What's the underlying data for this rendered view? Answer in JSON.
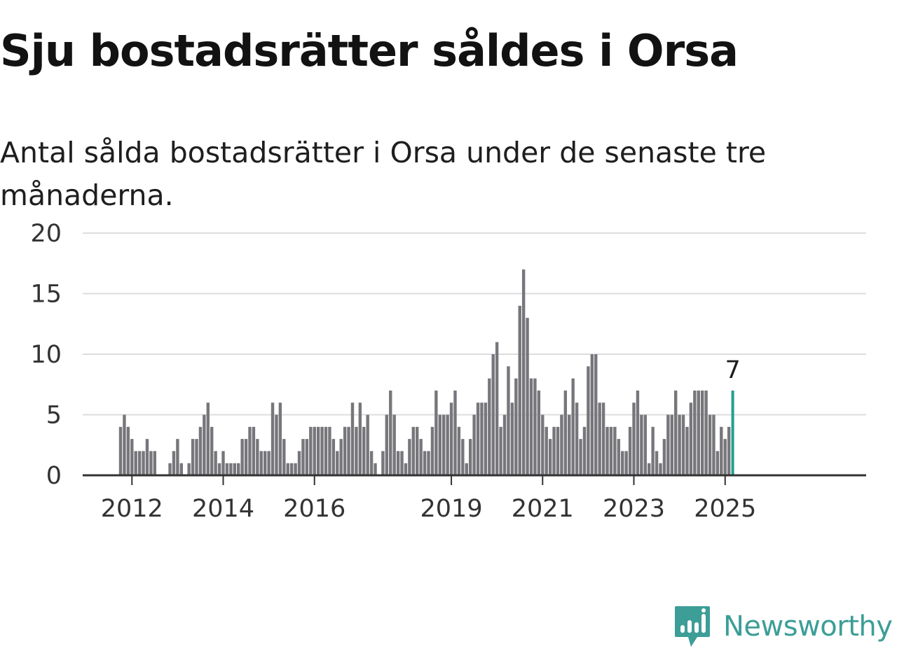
{
  "title": "Sju bostadsrätter såldes i Orsa",
  "subtitle": "Antal sålda bostadsrätter i Orsa under de senaste tre månaderna.",
  "brand": {
    "name": "Newsworthy",
    "color": "#3c9e97"
  },
  "chart_data": {
    "type": "bar",
    "title": "Sju bostadsrätter såldes i Orsa",
    "subtitle": "Antal sålda bostadsrätter i Orsa under de senaste tre månaderna.",
    "xlabel": "",
    "ylabel": "",
    "ylim": [
      0,
      20
    ],
    "yticks": [
      0,
      5,
      10,
      15,
      20
    ],
    "xtick_labels": [
      "2012",
      "2014",
      "2016",
      "2019",
      "2021",
      "2023",
      "2025"
    ],
    "grid": "horizontal",
    "bar_color": "#77767b",
    "highlight_color": "#229e91",
    "highlight_label": "7",
    "first_month": "2011-10",
    "last_month": "2025-04",
    "values": [
      4,
      5,
      4,
      3,
      2,
      2,
      2,
      3,
      2,
      2,
      0,
      0,
      0,
      1,
      2,
      3,
      1,
      0,
      1,
      3,
      3,
      4,
      5,
      6,
      4,
      2,
      1,
      2,
      1,
      1,
      1,
      1,
      3,
      3,
      4,
      4,
      3,
      2,
      2,
      2,
      6,
      5,
      6,
      3,
      1,
      1,
      1,
      2,
      3,
      3,
      4,
      4,
      4,
      4,
      4,
      4,
      3,
      2,
      3,
      4,
      4,
      6,
      4,
      6,
      4,
      5,
      2,
      1,
      0,
      2,
      5,
      7,
      5,
      2,
      2,
      1,
      3,
      4,
      4,
      3,
      2,
      2,
      4,
      7,
      5,
      5,
      5,
      6,
      7,
      4,
      3,
      1,
      3,
      5,
      6,
      6,
      6,
      8,
      10,
      11,
      4,
      5,
      9,
      6,
      8,
      14,
      17,
      13,
      8,
      8,
      7,
      5,
      4,
      3,
      4,
      4,
      5,
      7,
      5,
      8,
      6,
      3,
      4,
      9,
      10,
      10,
      6,
      6,
      4,
      4,
      4,
      3,
      2,
      2,
      4,
      6,
      7,
      5,
      5,
      1,
      4,
      2,
      1,
      3,
      5,
      5,
      7,
      5,
      5,
      4,
      6,
      7,
      7,
      7,
      7,
      5,
      5,
      2,
      4,
      3,
      4,
      7
    ]
  }
}
